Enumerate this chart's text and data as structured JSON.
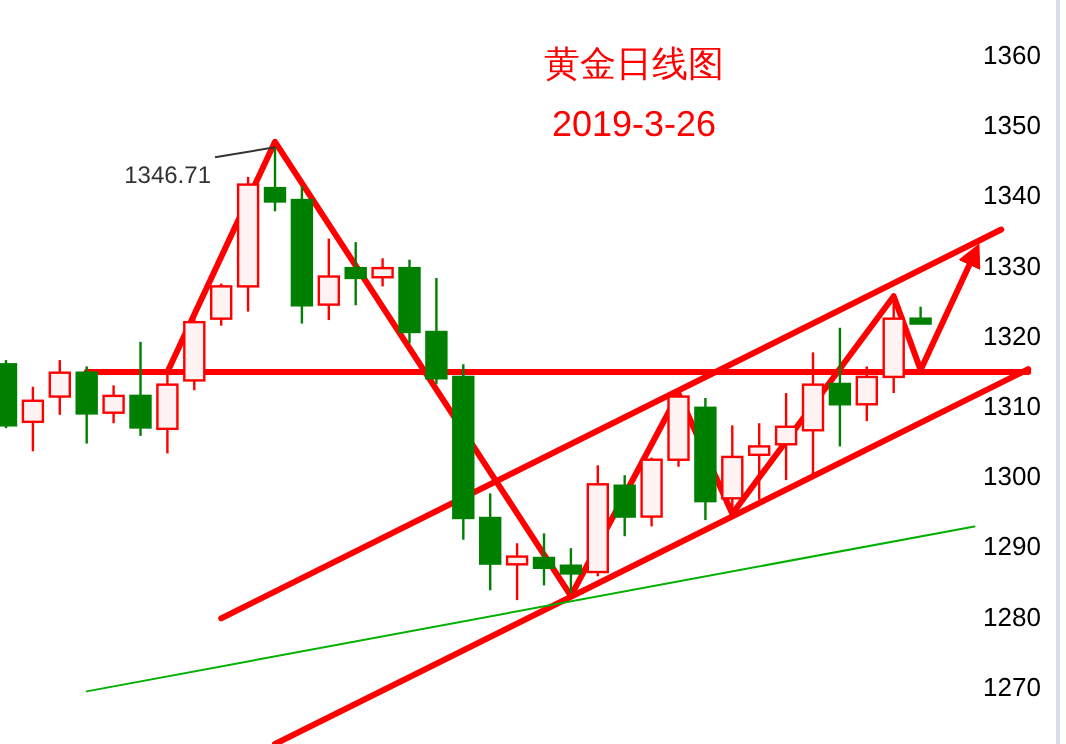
{
  "chart_data": {
    "type": "candlestick",
    "title": "黄金日线图",
    "subtitle": "2019-3-26",
    "categories": [
      null,
      null,
      null,
      null,
      null,
      null,
      null,
      null,
      null,
      null,
      null,
      null,
      null,
      null,
      null,
      null,
      null,
      null,
      null,
      null,
      null,
      null,
      null,
      null,
      null,
      null,
      null,
      null,
      null,
      null,
      null,
      null,
      null,
      null,
      null,
      null,
      null,
      null,
      null
    ],
    "ohlc": [
      [
        1315.8,
        1316.4,
        1306.7,
        1307.1
      ],
      [
        1307.6,
        1312.6,
        1303.4,
        1310.6
      ],
      [
        1311.2,
        1316.4,
        1308.6,
        1314.6
      ],
      [
        1314.6,
        1315.5,
        1304.5,
        1308.8
      ],
      [
        1308.9,
        1312.8,
        1307.4,
        1311.3
      ],
      [
        1311.3,
        1319.0,
        1305.6,
        1306.8
      ],
      [
        1306.6,
        1314.5,
        1303.1,
        1312.9
      ],
      [
        1313.5,
        1323.1,
        1312.1,
        1321.8
      ],
      [
        1322.3,
        1327.3,
        1321.3,
        1326.9
      ],
      [
        1326.9,
        1342.5,
        1323.3,
        1341.4
      ],
      [
        1340.9,
        1346.71,
        1337.6,
        1339.0
      ],
      [
        1339.2,
        1341.2,
        1321.6,
        1324.2
      ],
      [
        1324.3,
        1333.7,
        1322.1,
        1328.3
      ],
      [
        1329.5,
        1333.2,
        1324.2,
        1328.1
      ],
      [
        1328.2,
        1330.9,
        1326.9,
        1329.5
      ],
      [
        1329.5,
        1330.7,
        1318.8,
        1320.4
      ],
      [
        1320.4,
        1328.1,
        1313.0,
        1313.8
      ],
      [
        1314.0,
        1315.8,
        1290.8,
        1293.9
      ],
      [
        1293.9,
        1297.4,
        1283.6,
        1287.4
      ],
      [
        1287.3,
        1290.3,
        1282.2,
        1288.4
      ],
      [
        1288.2,
        1291.7,
        1284.3,
        1286.8
      ],
      [
        1287.1,
        1289.6,
        1283.2,
        1286.0
      ],
      [
        1286.2,
        1301.4,
        1285.6,
        1298.7
      ],
      [
        1298.5,
        1300.0,
        1291.3,
        1294.1
      ],
      [
        1294.1,
        1302.5,
        1292.7,
        1302.2
      ],
      [
        1302.2,
        1312.1,
        1301.2,
        1311.2
      ],
      [
        1309.6,
        1311.0,
        1293.6,
        1296.3
      ],
      [
        1296.7,
        1307.1,
        1294.1,
        1302.6
      ],
      [
        1302.9,
        1307.4,
        1296.5,
        1304.1
      ],
      [
        1304.4,
        1311.7,
        1299.3,
        1306.9
      ],
      [
        1306.4,
        1317.5,
        1299.5,
        1312.9
      ],
      [
        1313.0,
        1321.0,
        1304.1,
        1310.1
      ],
      [
        1310.1,
        1315.5,
        1307.7,
        1314.0
      ],
      [
        1314.0,
        1325.0,
        1311.7,
        1322.3
      ],
      [
        1322.3,
        1324.0,
        1321.5,
        1321.6
      ],
      null,
      null,
      null,
      null
    ],
    "colors": [
      "#008000",
      "#ff0000",
      "#ff0000",
      "#008000",
      "#ff0000",
      "#008000",
      "#ff0000",
      "#ff0000",
      "#ff0000",
      "#ff0000",
      "#008000",
      "#008000",
      "#ff0000",
      "#008000",
      "#ff0000",
      "#008000",
      "#008000",
      "#008000",
      "#008000",
      "#ff0000",
      "#008000",
      "#008000",
      "#ff0000",
      "#008000",
      "#ff0000",
      "#ff0000",
      "#008000",
      "#ff0000",
      "#ff0000",
      "#ff0000",
      "#ff0000",
      "#008000",
      "#ff0000",
      "#ff0000",
      "#008000",
      null,
      null,
      null,
      null
    ],
    "series": [
      {
        "type": "line",
        "color": "#ff0000",
        "values": [
          null,
          null,
          null,
          1314.7,
          null,
          null,
          null,
          null,
          null,
          null,
          null,
          null,
          null,
          null,
          null,
          null,
          null,
          null,
          null,
          null,
          null,
          null,
          null,
          null,
          null,
          null,
          null,
          null,
          null,
          null,
          null,
          null,
          null,
          null,
          null,
          null,
          null,
          null,
          1314.7
        ]
      },
      {
        "type": "line",
        "color": "#ff0000",
        "values": [
          null,
          null,
          null,
          null,
          null,
          null,
          1314.7,
          null,
          null,
          null,
          1347.5,
          null,
          null,
          null,
          null,
          null,
          null,
          null,
          null,
          null,
          null,
          1282.8,
          null,
          null,
          null,
          1311.6,
          null,
          1294.5,
          null,
          null,
          null,
          null,
          null,
          1325.5,
          1315.0,
          null,
          1331.5,
          null,
          null
        ]
      },
      {
        "type": "line",
        "color": "#ff0000",
        "values": [
          null,
          null,
          null,
          null,
          null,
          null,
          null,
          null,
          1279.6,
          null,
          null,
          null,
          null,
          null,
          null,
          null,
          null,
          null,
          null,
          null,
          null,
          null,
          null,
          null,
          null,
          null,
          null,
          null,
          null,
          null,
          null,
          null,
          null,
          null,
          null,
          null,
          null,
          1335.0,
          null
        ]
      },
      {
        "type": "line",
        "color": "#ff0000",
        "values": [
          null,
          null,
          null,
          null,
          null,
          null,
          null,
          null,
          null,
          null,
          1261.7,
          null,
          null,
          null,
          null,
          null,
          null,
          null,
          null,
          null,
          null,
          null,
          null,
          null,
          null,
          null,
          null,
          null,
          null,
          null,
          null,
          null,
          null,
          null,
          null,
          null,
          null,
          null,
          1315.1
        ]
      },
      {
        "type": "line",
        "color": "#00b000",
        "values": [
          null,
          null,
          null,
          1269.2,
          null,
          null,
          null,
          null,
          null,
          null,
          null,
          null,
          null,
          null,
          null,
          null,
          null,
          null,
          null,
          null,
          null,
          null,
          null,
          null,
          null,
          null,
          null,
          null,
          null,
          null,
          null,
          null,
          null,
          null,
          null,
          null,
          1292.7,
          null,
          null
        ]
      }
    ],
    "annotations": [
      "1346.71"
    ],
    "ylim": [
      1261.7,
      1367.7
    ],
    "yticks": [
      1270,
      1280,
      1290,
      1300,
      1310,
      1320,
      1330,
      1340,
      1350,
      1360
    ],
    "tick_labels": "y",
    "grid": false
  }
}
